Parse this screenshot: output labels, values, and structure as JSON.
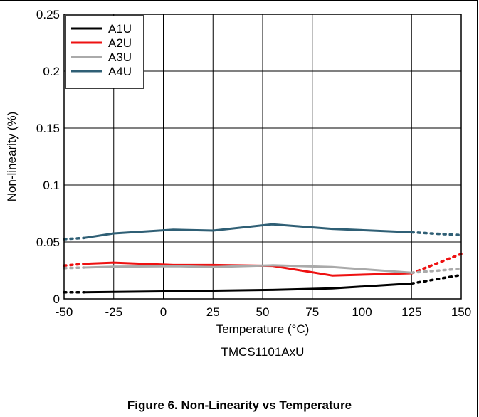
{
  "chart_data": {
    "type": "line",
    "xlabel": "Temperature (°C)",
    "ylabel": "Non-linearity (%)",
    "subtitle": "TMCS1101AxU",
    "xlim": [
      -50,
      150
    ],
    "ylim": [
      0,
      0.25
    ],
    "x_ticks": [
      -50,
      -25,
      0,
      25,
      50,
      75,
      100,
      125,
      150
    ],
    "y_ticks": [
      0,
      0.05,
      0.1,
      0.15,
      0.2,
      0.25
    ],
    "x_tick_labels": [
      "-50",
      "-25",
      "0",
      "25",
      "50",
      "75",
      "100",
      "125",
      "150"
    ],
    "y_tick_labels": [
      "0",
      "0.05",
      "0.1",
      "0.15",
      "0.2",
      "0.25"
    ],
    "grid": true,
    "legend_position": "top-left",
    "series": [
      {
        "name": "A1U",
        "color": "#000000",
        "x": [
          -40,
          0,
          55,
          85,
          125
        ],
        "y": [
          0.0058,
          0.0066,
          0.0079,
          0.0092,
          0.0135
        ],
        "dotted_before": [
          [
            -50,
            0.0058
          ],
          [
            -40,
            0.0058
          ]
        ],
        "dotted_after": [
          [
            125,
            0.0135
          ],
          [
            150,
            0.021
          ]
        ]
      },
      {
        "name": "A2U",
        "color": "#ee1111",
        "x": [
          -40,
          -25,
          5,
          25,
          55,
          85,
          125
        ],
        "y": [
          0.0308,
          0.0318,
          0.0298,
          0.0298,
          0.029,
          0.0205,
          0.0225
        ],
        "dotted_before": [
          [
            -50,
            0.0292
          ],
          [
            -40,
            0.0308
          ]
        ],
        "dotted_after": [
          [
            125,
            0.0225
          ],
          [
            150,
            0.0395
          ]
        ]
      },
      {
        "name": "A3U",
        "color": "#aaaaaa",
        "x": [
          -40,
          -25,
          5,
          25,
          55,
          85,
          125
        ],
        "y": [
          0.0275,
          0.0283,
          0.0287,
          0.028,
          0.0295,
          0.028,
          0.023
        ],
        "dotted_before": [
          [
            -50,
            0.027
          ],
          [
            -40,
            0.0275
          ]
        ],
        "dotted_after": [
          [
            125,
            0.023
          ],
          [
            150,
            0.0265
          ]
        ]
      },
      {
        "name": "A4U",
        "color": "#2f5f75",
        "x": [
          -40,
          -25,
          5,
          25,
          55,
          85,
          125
        ],
        "y": [
          0.0535,
          0.0575,
          0.0608,
          0.06,
          0.0655,
          0.0615,
          0.0585
        ],
        "dotted_before": [
          [
            -50,
            0.0525
          ],
          [
            -40,
            0.0535
          ]
        ],
        "dotted_after": [
          [
            125,
            0.0585
          ],
          [
            150,
            0.056
          ]
        ]
      }
    ]
  },
  "caption": "Figure 6. Non-Linearity vs Temperature"
}
